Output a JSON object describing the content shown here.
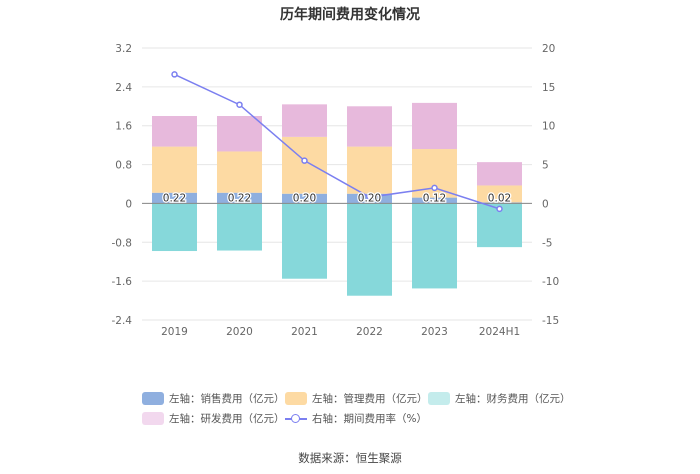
{
  "title": "历年期间费用变化情况",
  "source": "数据来源：恒生聚源",
  "colors": {
    "sales": "#8fafdf",
    "mgmt": "#fddaa3",
    "finance": "#86d8da",
    "rnd": "#e7b9dc",
    "rate": "#7b7ff0"
  },
  "legend": [
    {
      "label": "左轴：销售费用（亿元）",
      "color": "#8fafdf",
      "kind": "box"
    },
    {
      "label": "左轴：管理费用（亿元）",
      "color": "#fddaa3",
      "kind": "box"
    },
    {
      "label": "左轴：财务费用（亿元）",
      "color": "#c4ecec",
      "kind": "box"
    },
    {
      "label": "左轴：研发费用（亿元）",
      "color": "#f2d8ee",
      "kind": "box"
    },
    {
      "label": "右轴：期间费用率（%）",
      "color": "#7b7ff0",
      "kind": "line"
    }
  ],
  "chart_data": {
    "type": "bar",
    "stacked": true,
    "categories": [
      "2019",
      "2020",
      "2021",
      "2022",
      "2023",
      "2024H1"
    ],
    "series": [
      {
        "name": "左轴：销售费用（亿元）",
        "axis": "left",
        "color": "#8fafdf",
        "values": [
          0.22,
          0.22,
          0.2,
          0.2,
          0.12,
          0.02
        ]
      },
      {
        "name": "左轴：管理费用（亿元）",
        "axis": "left",
        "color": "#fddaa3",
        "values": [
          0.95,
          0.85,
          1.17,
          0.97,
          1.0,
          0.35
        ]
      },
      {
        "name": "左轴：研发费用（亿元）",
        "axis": "left",
        "color": "#e7b9dc",
        "values": [
          0.63,
          0.73,
          0.67,
          0.83,
          0.95,
          0.48
        ]
      },
      {
        "name": "左轴：财务费用（亿元）",
        "axis": "left",
        "color": "#86d8da",
        "values": [
          -0.98,
          -0.97,
          -1.55,
          -1.9,
          -1.75,
          -0.9
        ]
      },
      {
        "name": "右轴：期间费用率（%）",
        "axis": "right",
        "type": "line",
        "color": "#7b7ff0",
        "values": [
          16.6,
          12.7,
          5.5,
          0.8,
          2.0,
          -0.7
        ]
      }
    ],
    "data_labels": [
      "0.22",
      "0.22",
      "0.20",
      "0.20",
      "0.12",
      "0.02"
    ],
    "left_axis": {
      "min": -2.4,
      "max": 3.2,
      "ticks": [
        "3.2",
        "2.4",
        "1.6",
        "0.8",
        "0",
        "-0.8",
        "-1.6",
        "-2.4"
      ]
    },
    "right_axis": {
      "min": -15,
      "max": 20,
      "ticks": [
        "20",
        "15",
        "10",
        "5",
        "0",
        "-5",
        "-10",
        "-15"
      ]
    },
    "grid": true,
    "legend_position": "bottom"
  }
}
